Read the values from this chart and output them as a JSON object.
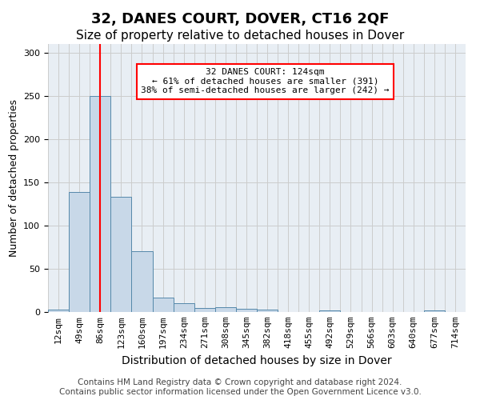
{
  "title": "32, DANES COURT, DOVER, CT16 2QF",
  "subtitle": "Size of property relative to detached houses in Dover",
  "xlabel": "Distribution of detached houses by size in Dover",
  "ylabel": "Number of detached properties",
  "bar_values": [
    3,
    139,
    250,
    133,
    70,
    17,
    10,
    5,
    6,
    4,
    3,
    0,
    0,
    2,
    0,
    0,
    0,
    0,
    2,
    0
  ],
  "bar_labels": [
    "12sqm",
    "49sqm",
    "86sqm",
    "123sqm",
    "160sqm",
    "197sqm",
    "234sqm",
    "271sqm",
    "308sqm",
    "345sqm",
    "382sqm",
    "418sqm",
    "455sqm",
    "492sqm",
    "529sqm",
    "566sqm",
    "603sqm",
    "640sqm",
    "677sqm",
    "714sqm"
  ],
  "bar_color": "#c8d8e8",
  "bar_edge_color": "#5588aa",
  "red_line_x": 2.5,
  "annotation_text": "32 DANES COURT: 124sqm\n← 61% of detached houses are smaller (391)\n38% of semi-detached houses are larger (242) →",
  "annotation_box_color": "white",
  "annotation_box_edge": "red",
  "ylim": [
    0,
    310
  ],
  "yticks": [
    0,
    50,
    100,
    150,
    200,
    250,
    300
  ],
  "grid_color": "#cccccc",
  "bg_color": "#e8eef4",
  "footer_text": "Contains HM Land Registry data © Crown copyright and database right 2024.\nContains public sector information licensed under the Open Government Licence v3.0.",
  "title_fontsize": 13,
  "subtitle_fontsize": 11,
  "xlabel_fontsize": 10,
  "ylabel_fontsize": 9,
  "tick_fontsize": 8,
  "footer_fontsize": 7.5
}
